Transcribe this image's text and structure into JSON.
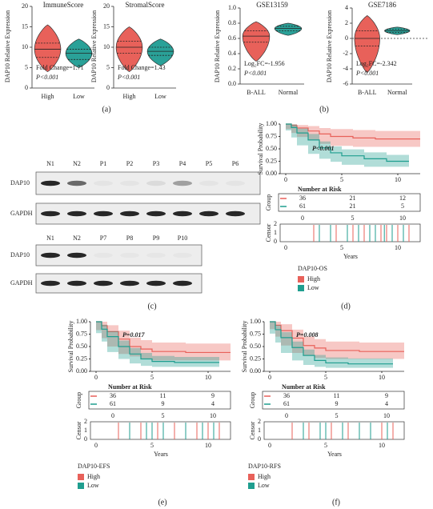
{
  "panel_a": {
    "caption": "(a)",
    "y_label": "DAP10 Relative Expression",
    "plots": [
      {
        "title": "ImmuneScore",
        "ylim": [
          0,
          20
        ],
        "yticks": [
          0,
          5,
          10,
          15,
          20
        ],
        "note": "Fold Change=1.71",
        "p_value": "P<0.001",
        "groups": [
          {
            "name": "High",
            "color": "#e8615a",
            "min": 4,
            "q1": 7.5,
            "median": 9.5,
            "q3": 11,
            "max": 15.5
          },
          {
            "name": "Low",
            "color": "#2aa198",
            "min": 5,
            "q1": 7,
            "median": 8.5,
            "q3": 9.5,
            "max": 12
          }
        ]
      },
      {
        "title": "StromalScore",
        "ylim": [
          0,
          20
        ],
        "yticks": [
          0,
          5,
          10,
          15,
          20
        ],
        "note": "Fold Change=1.43",
        "p_value": "P<0.001",
        "groups": [
          {
            "name": "High",
            "color": "#e8615a",
            "min": 4,
            "q1": 8.5,
            "median": 10,
            "q3": 11.5,
            "max": 15
          },
          {
            "name": "Low",
            "color": "#2aa198",
            "min": 5.5,
            "q1": 8,
            "median": 9,
            "q3": 10,
            "max": 12
          }
        ]
      }
    ]
  },
  "panel_b": {
    "caption": "(b)",
    "y_label": "DAP10 Relative Expression",
    "plots": [
      {
        "title": "GSE13159",
        "ylim": [
          0,
          1
        ],
        "yticks": [
          {
            "value": 0,
            "label": "0.0"
          },
          {
            "value": 0.2,
            "label": "0.2"
          },
          {
            "value": 0.4,
            "label": "0.4"
          },
          {
            "value": 0.6,
            "label": "0.6"
          },
          {
            "value": 0.8,
            "label": "0.8"
          },
          {
            "value": 1,
            "label": "1.0"
          }
        ],
        "note": "Log₂FC=-1.956",
        "p_value": "P<0.001",
        "groups": [
          {
            "name": "B-ALL",
            "color": "#e8615a",
            "min": 0.3,
            "q1": 0.55,
            "median": 0.63,
            "q3": 0.7,
            "max": 0.82
          },
          {
            "name": "Normal",
            "color": "#2aa198",
            "min": 0.64,
            "q1": 0.7,
            "median": 0.73,
            "q3": 0.76,
            "max": 0.8
          }
        ]
      },
      {
        "title": "GSE7186",
        "ylim": [
          -6,
          4
        ],
        "yticks": [
          -6,
          -4,
          -2,
          0,
          2,
          4
        ],
        "ref_line": 0,
        "note": "Log₂FC=-2.342",
        "p_value": "P<0.001",
        "groups": [
          {
            "name": "B-ALL",
            "color": "#e8615a",
            "min": -4.5,
            "q1": -1,
            "median": 0,
            "q3": 1,
            "max": 3
          },
          {
            "name": "Normal",
            "color": "#2aa198",
            "min": 0.5,
            "q1": 0.8,
            "median": 1,
            "q3": 1.2,
            "max": 1.5
          }
        ]
      }
    ]
  },
  "panel_c": {
    "caption": "(c)",
    "blots": [
      {
        "lanes": [
          "N1",
          "N2",
          "P1",
          "P2",
          "P3",
          "P4",
          "P5",
          "P6"
        ],
        "rows": [
          "DAP10",
          "GAPDH"
        ]
      },
      {
        "lanes": [
          "N1",
          "N2",
          "P7",
          "P8",
          "P9",
          "P10"
        ],
        "rows": [
          "DAP10",
          "GAPDH"
        ]
      }
    ]
  },
  "panels_km": [
    {
      "caption": "(d)",
      "legend_title": "DAP10-OS",
      "p_value": "P<0.001",
      "y_label": "Survival Probability",
      "xlim": [
        -0.5,
        12
      ],
      "ylim": [
        0,
        1
      ],
      "xticks": [
        0,
        5,
        10
      ],
      "yticks": [
        {
          "value": 0,
          "label": "0.00"
        },
        {
          "value": 0.25,
          "label": "0.25"
        },
        {
          "value": 0.5,
          "label": "0.50"
        },
        {
          "value": 0.75,
          "label": "0.75"
        },
        {
          "value": 1,
          "label": "1.00"
        }
      ],
      "risk_title": "Number at Risk",
      "group_label": "Group",
      "risk_times": [
        0,
        5,
        10
      ],
      "censor_label": "Censor",
      "censor_yticks": [
        0,
        1,
        2
      ],
      "x_label": "Years",
      "curves": [
        {
          "name": "High",
          "color": "#e8615a",
          "risk": [
            36,
            21,
            12
          ],
          "times": [
            0,
            0.5,
            1,
            2,
            3,
            4,
            6,
            8,
            12
          ],
          "surv": [
            1,
            0.97,
            0.92,
            0.86,
            0.8,
            0.75,
            0.72,
            0.7,
            0.7
          ],
          "ci_lower": [
            1,
            0.9,
            0.82,
            0.74,
            0.67,
            0.6,
            0.56,
            0.54,
            0.54
          ],
          "ci_upper": [
            1,
            1,
            0.98,
            0.96,
            0.92,
            0.9,
            0.88,
            0.86,
            0.86
          ],
          "censor": [
            2.5,
            4.5,
            6,
            7,
            8,
            8.5,
            9,
            10,
            11
          ]
        },
        {
          "name": "Low",
          "color": "#1f9e8f",
          "risk": [
            61,
            21,
            5
          ],
          "times": [
            0,
            0.5,
            1,
            2,
            3,
            4,
            5,
            7,
            9,
            11
          ],
          "surv": [
            1,
            0.93,
            0.82,
            0.68,
            0.52,
            0.42,
            0.36,
            0.3,
            0.25,
            0.25
          ],
          "ci_lower": [
            1,
            0.87,
            0.73,
            0.57,
            0.4,
            0.3,
            0.24,
            0.18,
            0.14,
            0.14
          ],
          "ci_upper": [
            1,
            0.99,
            0.91,
            0.8,
            0.65,
            0.55,
            0.49,
            0.43,
            0.38,
            0.38
          ],
          "censor": [
            3,
            4,
            5.5,
            6.5,
            7.5,
            8,
            8.8,
            9.5,
            10.5
          ]
        }
      ]
    },
    {
      "caption": "(e)",
      "legend_title": "DAP10-EFS",
      "p_value": "P=0.017",
      "y_label": "Survival Probability",
      "xlim": [
        -0.5,
        12
      ],
      "ylim": [
        0,
        1
      ],
      "xticks": [
        0,
        5,
        10
      ],
      "yticks": [
        {
          "value": 0,
          "label": "0.00"
        },
        {
          "value": 0.25,
          "label": "0.25"
        },
        {
          "value": 0.5,
          "label": "0.50"
        },
        {
          "value": 0.75,
          "label": "0.75"
        },
        {
          "value": 1,
          "label": "1.00"
        }
      ],
      "risk_title": "Number at Risk",
      "group_label": "Group",
      "risk_times": [
        0,
        5,
        10
      ],
      "censor_label": "Censor",
      "censor_yticks": [
        0,
        1,
        2
      ],
      "x_label": "Years",
      "curves": [
        {
          "name": "High",
          "color": "#e8615a",
          "risk": [
            36,
            11,
            9
          ],
          "times": [
            0,
            0.5,
            1,
            2,
            3,
            4,
            5,
            8,
            12
          ],
          "surv": [
            1,
            0.92,
            0.8,
            0.65,
            0.5,
            0.45,
            0.4,
            0.38,
            0.38
          ],
          "ci_lower": [
            1,
            0.83,
            0.67,
            0.5,
            0.35,
            0.3,
            0.25,
            0.22,
            0.22
          ],
          "ci_upper": [
            1,
            1,
            0.93,
            0.82,
            0.68,
            0.63,
            0.58,
            0.56,
            0.56
          ],
          "censor": [
            2,
            4,
            5.5,
            7,
            9,
            10,
            11
          ]
        },
        {
          "name": "Low",
          "color": "#1f9e8f",
          "risk": [
            61,
            9,
            4
          ],
          "times": [
            0,
            0.5,
            1,
            2,
            3,
            4,
            5,
            7,
            11
          ],
          "surv": [
            1,
            0.85,
            0.7,
            0.5,
            0.35,
            0.25,
            0.2,
            0.18,
            0.18
          ],
          "ci_lower": [
            1,
            0.77,
            0.6,
            0.39,
            0.25,
            0.16,
            0.11,
            0.09,
            0.09
          ],
          "ci_upper": [
            1,
            0.94,
            0.81,
            0.62,
            0.47,
            0.37,
            0.31,
            0.29,
            0.29
          ],
          "censor": [
            3,
            4.5,
            5,
            6,
            8,
            9.5,
            10.5
          ]
        }
      ]
    },
    {
      "caption": "(f)",
      "legend_title": "DAP10-RFS",
      "p_value": "P=0.008",
      "y_label": "Survival Probability",
      "xlim": [
        -0.5,
        12
      ],
      "ylim": [
        0,
        1
      ],
      "xticks": [
        0,
        5,
        10
      ],
      "yticks": [
        {
          "value": 0,
          "label": "0.00"
        },
        {
          "value": 0.25,
          "label": "0.25"
        },
        {
          "value": 0.5,
          "label": "0.50"
        },
        {
          "value": 0.75,
          "label": "0.75"
        },
        {
          "value": 1,
          "label": "1.00"
        }
      ],
      "risk_title": "Number at Risk",
      "group_label": "Group",
      "risk_times": [
        0,
        5,
        10
      ],
      "censor_label": "Censor",
      "censor_yticks": [
        0,
        1,
        2
      ],
      "x_label": "Years",
      "curves": [
        {
          "name": "High",
          "color": "#e8615a",
          "risk": [
            36,
            11,
            9
          ],
          "times": [
            0,
            0.5,
            1,
            2,
            3,
            4,
            5,
            8,
            12
          ],
          "surv": [
            1,
            0.93,
            0.82,
            0.67,
            0.52,
            0.47,
            0.42,
            0.4,
            0.4
          ],
          "ci_lower": [
            1,
            0.85,
            0.7,
            0.52,
            0.37,
            0.32,
            0.27,
            0.25,
            0.25
          ],
          "ci_upper": [
            1,
            1,
            0.95,
            0.84,
            0.7,
            0.65,
            0.6,
            0.58,
            0.58
          ],
          "censor": [
            2,
            3.5,
            5.5,
            7,
            9,
            10,
            11
          ]
        },
        {
          "name": "Low",
          "color": "#1f9e8f",
          "risk": [
            61,
            9,
            4
          ],
          "times": [
            0,
            0.5,
            1,
            2,
            3,
            4,
            5,
            7,
            11
          ],
          "surv": [
            1,
            0.84,
            0.68,
            0.48,
            0.32,
            0.22,
            0.17,
            0.15,
            0.15
          ],
          "ci_lower": [
            1,
            0.76,
            0.58,
            0.37,
            0.22,
            0.13,
            0.09,
            0.07,
            0.07
          ],
          "ci_upper": [
            1,
            0.93,
            0.79,
            0.6,
            0.44,
            0.33,
            0.28,
            0.26,
            0.26
          ],
          "censor": [
            3,
            4.5,
            5,
            6.5,
            8,
            9,
            10.5
          ]
        }
      ]
    }
  ]
}
